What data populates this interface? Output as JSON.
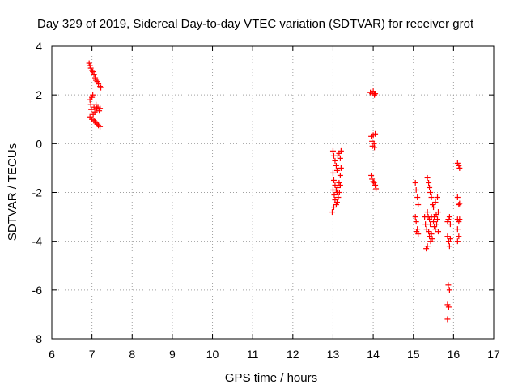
{
  "chart_data": {
    "type": "scatter",
    "title": "Day 329 of 2019, Sidereal Day-to-day VTEC variation (SDTVAR) for receiver grot",
    "xlabel": "GPS time / hours",
    "ylabel": "SDTVAR / TECUs",
    "xlim": [
      6,
      17
    ],
    "ylim": [
      -8,
      4
    ],
    "xticks": [
      "6",
      "7",
      "8",
      "9",
      "10",
      "11",
      "12",
      "13",
      "14",
      "15",
      "16",
      "17"
    ],
    "yticks": [
      "-8",
      "-6",
      "-4",
      "-2",
      "0",
      "2",
      "4"
    ],
    "grid": true,
    "marker": "plus",
    "color": "#ff0000",
    "series": [
      {
        "name": "SDTVAR",
        "points": [
          [
            6.93,
            3.3
          ],
          [
            6.95,
            3.2
          ],
          [
            6.97,
            3.1
          ],
          [
            7.0,
            3.0
          ],
          [
            7.02,
            2.95
          ],
          [
            7.05,
            2.85
          ],
          [
            7.08,
            2.7
          ],
          [
            7.1,
            2.6
          ],
          [
            7.13,
            2.55
          ],
          [
            7.16,
            2.45
          ],
          [
            7.2,
            2.35
          ],
          [
            7.22,
            2.3
          ],
          [
            6.95,
            1.8
          ],
          [
            6.97,
            1.6
          ],
          [
            7.0,
            1.9
          ],
          [
            7.02,
            2.0
          ],
          [
            6.98,
            1.4
          ],
          [
            7.05,
            1.5
          ],
          [
            7.07,
            1.3
          ],
          [
            7.1,
            1.6
          ],
          [
            7.12,
            1.45
          ],
          [
            7.15,
            1.5
          ],
          [
            7.18,
            1.35
          ],
          [
            7.2,
            1.45
          ],
          [
            7.03,
            1.2
          ],
          [
            6.95,
            1.1
          ],
          [
            7.0,
            1.0
          ],
          [
            7.05,
            0.95
          ],
          [
            7.08,
            0.9
          ],
          [
            7.1,
            0.85
          ],
          [
            7.13,
            0.8
          ],
          [
            7.16,
            0.75
          ],
          [
            7.2,
            0.7
          ],
          [
            13.0,
            -0.3
          ],
          [
            13.02,
            -0.5
          ],
          [
            13.05,
            -0.7
          ],
          [
            13.08,
            -0.9
          ],
          [
            13.1,
            -1.1
          ],
          [
            13.12,
            -0.5
          ],
          [
            13.15,
            -0.4
          ],
          [
            13.18,
            -0.6
          ],
          [
            13.2,
            -0.3
          ],
          [
            13.0,
            -1.2
          ],
          [
            13.02,
            -1.5
          ],
          [
            13.05,
            -1.7
          ],
          [
            13.08,
            -1.9
          ],
          [
            13.1,
            -2.0
          ],
          [
            13.12,
            -1.8
          ],
          [
            13.15,
            -1.6
          ],
          [
            13.18,
            -1.3
          ],
          [
            13.2,
            -1.0
          ],
          [
            13.0,
            -1.9
          ],
          [
            13.03,
            -2.1
          ],
          [
            13.05,
            -2.3
          ],
          [
            13.08,
            -2.5
          ],
          [
            13.02,
            -2.6
          ],
          [
            12.98,
            -2.8
          ],
          [
            13.1,
            -2.4
          ],
          [
            13.13,
            -2.2
          ],
          [
            13.16,
            -2.0
          ],
          [
            13.18,
            -1.7
          ],
          [
            13.93,
            2.1
          ],
          [
            13.97,
            2.05
          ],
          [
            14.0,
            2.15
          ],
          [
            14.03,
            2.0
          ],
          [
            14.05,
            2.05
          ],
          [
            13.95,
            0.3
          ],
          [
            13.97,
            0.1
          ],
          [
            14.0,
            0.35
          ],
          [
            14.02,
            0.0
          ],
          [
            14.05,
            0.4
          ],
          [
            13.98,
            -0.1
          ],
          [
            14.03,
            -0.15
          ],
          [
            13.95,
            -1.3
          ],
          [
            13.97,
            -1.45
          ],
          [
            14.0,
            -1.55
          ],
          [
            14.02,
            -1.6
          ],
          [
            14.05,
            -1.7
          ],
          [
            14.07,
            -1.85
          ],
          [
            15.05,
            -1.6
          ],
          [
            15.07,
            -1.9
          ],
          [
            15.1,
            -2.2
          ],
          [
            15.12,
            -2.5
          ],
          [
            15.05,
            -3.0
          ],
          [
            15.07,
            -3.2
          ],
          [
            15.1,
            -3.5
          ],
          [
            15.12,
            -3.7
          ],
          [
            15.08,
            -3.6
          ],
          [
            15.35,
            -1.4
          ],
          [
            15.38,
            -1.6
          ],
          [
            15.4,
            -1.8
          ],
          [
            15.42,
            -2.0
          ],
          [
            15.45,
            -2.2
          ],
          [
            15.48,
            -2.5
          ],
          [
            15.35,
            -2.8
          ],
          [
            15.37,
            -3.0
          ],
          [
            15.4,
            -3.1
          ],
          [
            15.42,
            -3.3
          ],
          [
            15.45,
            -3.0
          ],
          [
            15.5,
            -3.2
          ],
          [
            15.52,
            -3.4
          ],
          [
            15.55,
            -3.5
          ],
          [
            15.58,
            -3.3
          ],
          [
            15.6,
            -3.1
          ],
          [
            15.62,
            -2.8
          ],
          [
            15.38,
            -3.6
          ],
          [
            15.4,
            -3.8
          ],
          [
            15.43,
            -4.0
          ],
          [
            15.45,
            -3.7
          ],
          [
            15.35,
            -4.2
          ],
          [
            15.32,
            -4.3
          ],
          [
            15.5,
            -2.6
          ],
          [
            15.55,
            -2.4
          ],
          [
            15.6,
            -2.2
          ],
          [
            15.62,
            -3.6
          ],
          [
            15.3,
            -3.3
          ],
          [
            15.28,
            -3.0
          ],
          [
            15.33,
            -3.5
          ],
          [
            15.47,
            -3.9
          ],
          [
            15.52,
            -3.0
          ],
          [
            15.57,
            -2.9
          ],
          [
            15.85,
            -3.2
          ],
          [
            15.87,
            -3.1
          ],
          [
            15.9,
            -3.0
          ],
          [
            15.92,
            -3.3
          ],
          [
            15.85,
            -3.8
          ],
          [
            15.88,
            -4.0
          ],
          [
            15.9,
            -4.2
          ],
          [
            15.92,
            -3.9
          ],
          [
            15.87,
            -5.8
          ],
          [
            15.9,
            -6.0
          ],
          [
            15.85,
            -6.6
          ],
          [
            15.88,
            -6.7
          ],
          [
            15.85,
            -7.2
          ],
          [
            16.1,
            -0.8
          ],
          [
            16.13,
            -0.9
          ],
          [
            16.15,
            -1.0
          ],
          [
            16.1,
            -2.2
          ],
          [
            16.13,
            -2.5
          ],
          [
            16.15,
            -2.45
          ],
          [
            16.1,
            -3.1
          ],
          [
            16.13,
            -3.2
          ],
          [
            16.15,
            -3.1
          ],
          [
            16.1,
            -3.5
          ],
          [
            16.13,
            -3.8
          ],
          [
            16.1,
            -4.0
          ]
        ]
      }
    ]
  }
}
